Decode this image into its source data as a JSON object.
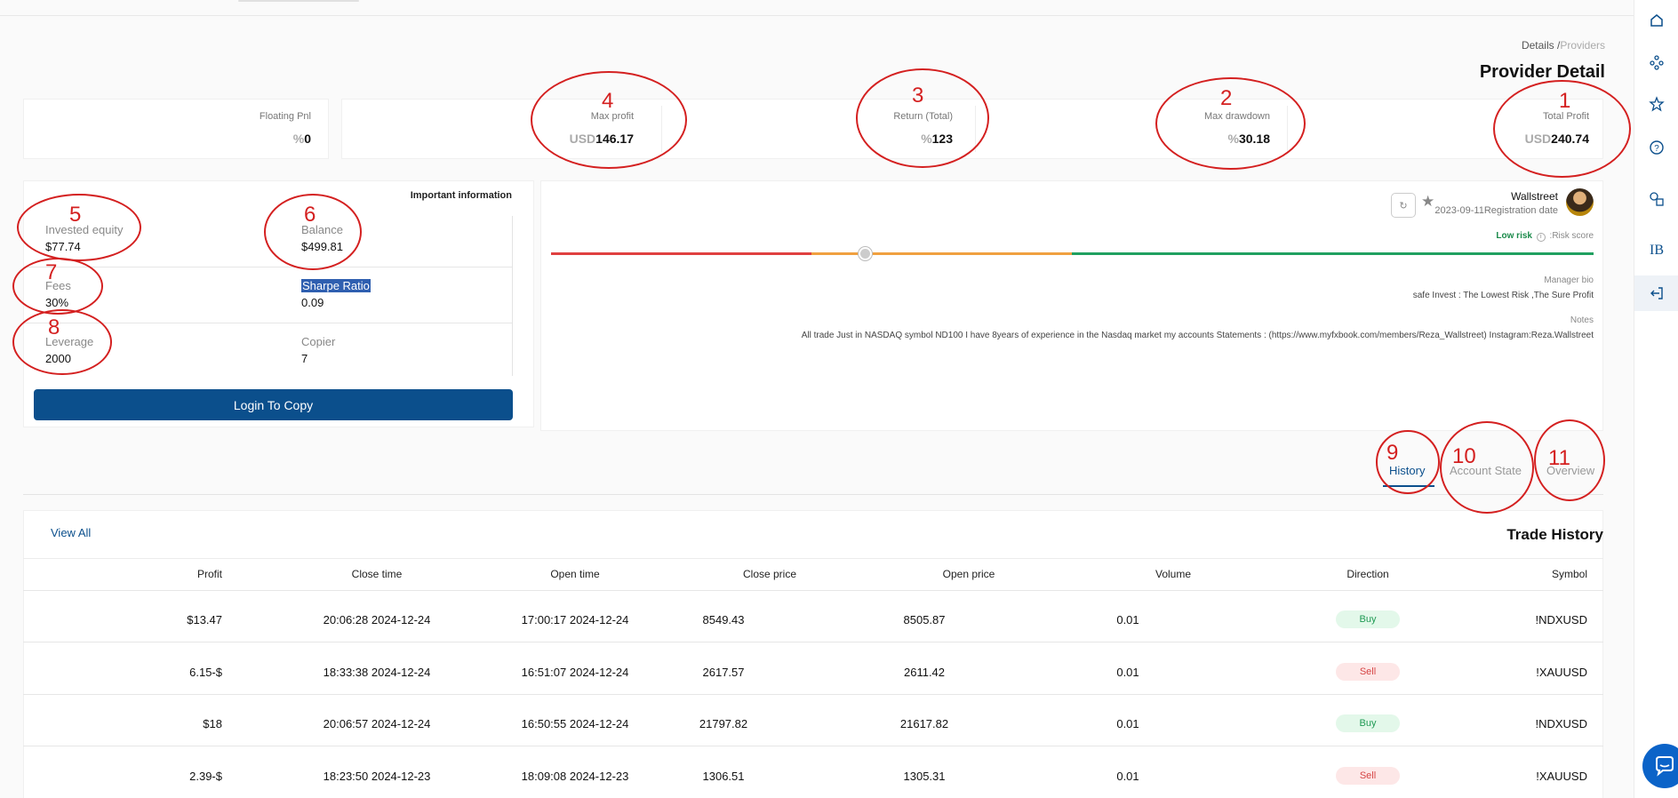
{
  "breadcrumb": {
    "first": "Details /",
    "second": "Providers"
  },
  "page_title": "Provider Detail",
  "stats": {
    "floating_pnl": {
      "label": "Floating Pnl",
      "unit": "%",
      "value": "0"
    },
    "max_profit": {
      "label": "Max profit",
      "unit": "USD",
      "value": "146.17"
    },
    "return_total": {
      "label": "Return (Total)",
      "unit": "%",
      "value": "123"
    },
    "max_drawdown": {
      "label": "Max drawdown",
      "unit": "%",
      "value": "30.18"
    },
    "total_profit": {
      "label": "Total Profit",
      "unit": "USD",
      "value": "240.74"
    }
  },
  "info": {
    "title": "Important information",
    "invested_equity": {
      "label": "Invested equity",
      "value": "$77.74"
    },
    "balance": {
      "label": "Balance",
      "value": "$499.81"
    },
    "fees": {
      "label": "Fees",
      "value": "30%"
    },
    "sharpe": {
      "label": "Sharpe Ratio",
      "value": "0.09"
    },
    "leverage": {
      "label": "Leverage",
      "value": "2000"
    },
    "copier": {
      "label": "Copier",
      "value": "7"
    },
    "login_button": "Login To Copy"
  },
  "provider": {
    "name": "Wallstreet",
    "reg_date": "2023-09-11",
    "reg_label": "Registration date",
    "risk_label": "Low risk",
    "risk_score_label": ":Risk score",
    "risk_level": 0.3,
    "manager_bio_label": "Manager bio",
    "manager_bio": "safe Invest : The Lowest Risk ,The Sure Profit",
    "notes_label": "Notes",
    "notes": "All trade Just in NASDAQ symbol ND100 I have 8years of experience in the Nasdaq market my accounts Statements : (https://www.myfxbook.com/members/Reza_Wallstreet) Instagram:Reza.Wallstreet",
    "icons": [
      "refresh-icon",
      "star-icon",
      "info-icon"
    ]
  },
  "tabs": [
    "History",
    "Account State",
    "Overview"
  ],
  "history": {
    "view_all": "View All",
    "title": "Trade History",
    "columns": [
      "Profit",
      "Close time",
      "Open time",
      "Close price",
      "Open price",
      "Volume",
      "Direction",
      "Symbol"
    ],
    "rows": [
      {
        "profit": "$13.47",
        "close_time": "20:06:28 2024-12-24",
        "open_time": "17:00:17 2024-12-24",
        "close_price": "8549.43",
        "open_price": "8505.87",
        "volume": "0.01",
        "direction": "Buy",
        "symbol": "!NDXUSD"
      },
      {
        "profit": "6.15-$",
        "close_time": "18:33:38 2024-12-24",
        "open_time": "16:51:07 2024-12-24",
        "close_price": "2617.57",
        "open_price": "2611.42",
        "volume": "0.01",
        "direction": "Sell",
        "symbol": "!XAUUSD"
      },
      {
        "profit": "$18",
        "close_time": "20:06:57 2024-12-24",
        "open_time": "16:50:55 2024-12-24",
        "close_price": "21797.82",
        "open_price": "21617.82",
        "volume": "0.01",
        "direction": "Buy",
        "symbol": "!NDXUSD"
      },
      {
        "profit": "2.39-$",
        "close_time": "18:23:50 2024-12-23",
        "open_time": "18:09:08 2024-12-23",
        "close_price": "1306.51",
        "open_price": "1305.31",
        "volume": "0.01",
        "direction": "Sell",
        "symbol": "!XAUUSD"
      }
    ]
  },
  "sidebar": {
    "items": [
      "home-icon",
      "network-icon",
      "star-icon",
      "help-icon",
      "shapes-icon",
      "ib-text",
      "logout-icon"
    ],
    "ib_label": "IB"
  },
  "annotations": [
    "1",
    "2",
    "3",
    "4",
    "5",
    "6",
    "7",
    "8",
    "9",
    "10",
    "11"
  ],
  "colors": {
    "primary": "#0b4f8c",
    "buy": "#1f9a54",
    "sell": "#d64545",
    "annotation": "#d42020",
    "risk_red": "#e04040",
    "risk_orange": "#f0a040",
    "risk_green": "#20a060"
  }
}
